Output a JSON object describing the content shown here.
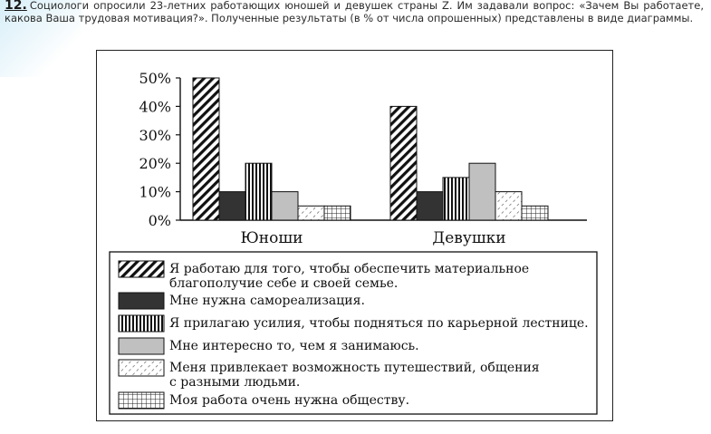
{
  "question": {
    "number": "12.",
    "text": "Социологи опросили 23-летних работающих юношей и девушек страны Z. Им задавали вопрос: «Зачем Вы работаете, какова Ваша трудовая мотивация?». Полученные результаты (в % от числа опрошенных) представлены в виде диаграммы."
  },
  "chart_data": {
    "type": "bar",
    "categories": [
      "Юноши",
      "Девушки"
    ],
    "y_ticks": [
      "50%",
      "40%",
      "30%",
      "20%",
      "10%",
      "0%"
    ],
    "ylim": [
      0,
      50
    ],
    "unit": "%",
    "grid": false,
    "legend_position": "bottom",
    "series": [
      {
        "name": "Я работаю для того, чтобы обеспечить материальное благополучие себе и своей семье.",
        "values": [
          50,
          40
        ],
        "pattern": "diagonal-hatch"
      },
      {
        "name": "Мне нужна самореализация.",
        "values": [
          10,
          10
        ],
        "pattern": "solid-dark"
      },
      {
        "name": "Я прилагаю усилия, чтобы подняться по карьерной лестнице.",
        "values": [
          20,
          15
        ],
        "pattern": "vertical-stripes"
      },
      {
        "name": "Мне интересно то, чем я занимаюсь.",
        "values": [
          10,
          20
        ],
        "pattern": "solid-gray"
      },
      {
        "name": "Меня привлекает возможность путешествий, общения с разными людьми.",
        "values": [
          5,
          10
        ],
        "pattern": "dashed-hatch"
      },
      {
        "name": "Моя работа очень нужна обществу.",
        "values": [
          5,
          5
        ],
        "pattern": "grid"
      }
    ],
    "colors": {
      "dark": "#333333",
      "gray": "#c0c0c0",
      "line": "#111111"
    }
  }
}
